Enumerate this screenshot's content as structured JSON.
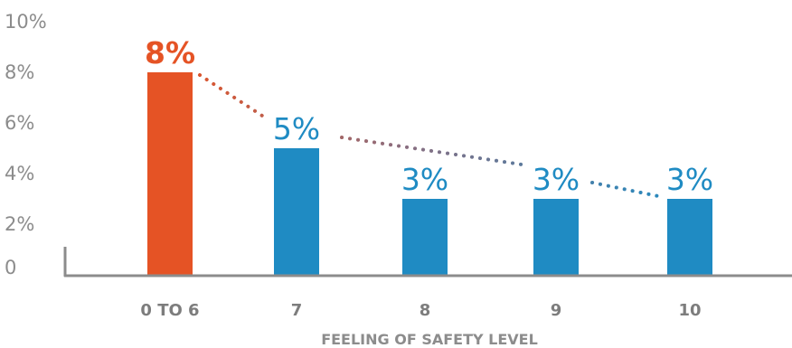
{
  "chart_data": {
    "type": "bar",
    "categories": [
      "0 TO 6",
      "7",
      "8",
      "9",
      "10"
    ],
    "values": [
      8,
      5,
      3,
      3,
      3
    ],
    "value_labels": [
      "8%",
      "5%",
      "3%",
      "3%",
      "3%"
    ],
    "bar_colors": [
      "#e55325",
      "#1f8bc3",
      "#1f8bc3",
      "#1f8bc3",
      "#1f8bc3"
    ],
    "highlight_label_color": "#e55325",
    "label_color": "#1f8bc3",
    "trend_line": "dotted, connecting bar tops, fading from orange to blue",
    "xlabel": "FEELING OF SAFETY LEVEL",
    "ylabel": "",
    "yticks": [
      "0",
      "2%",
      "4%",
      "6%",
      "8%",
      "10%"
    ],
    "ytick_values": [
      0,
      2,
      4,
      6,
      8,
      10
    ],
    "ylim": [
      0,
      10
    ],
    "grid": false,
    "axis_color": "#8c8c8c"
  }
}
